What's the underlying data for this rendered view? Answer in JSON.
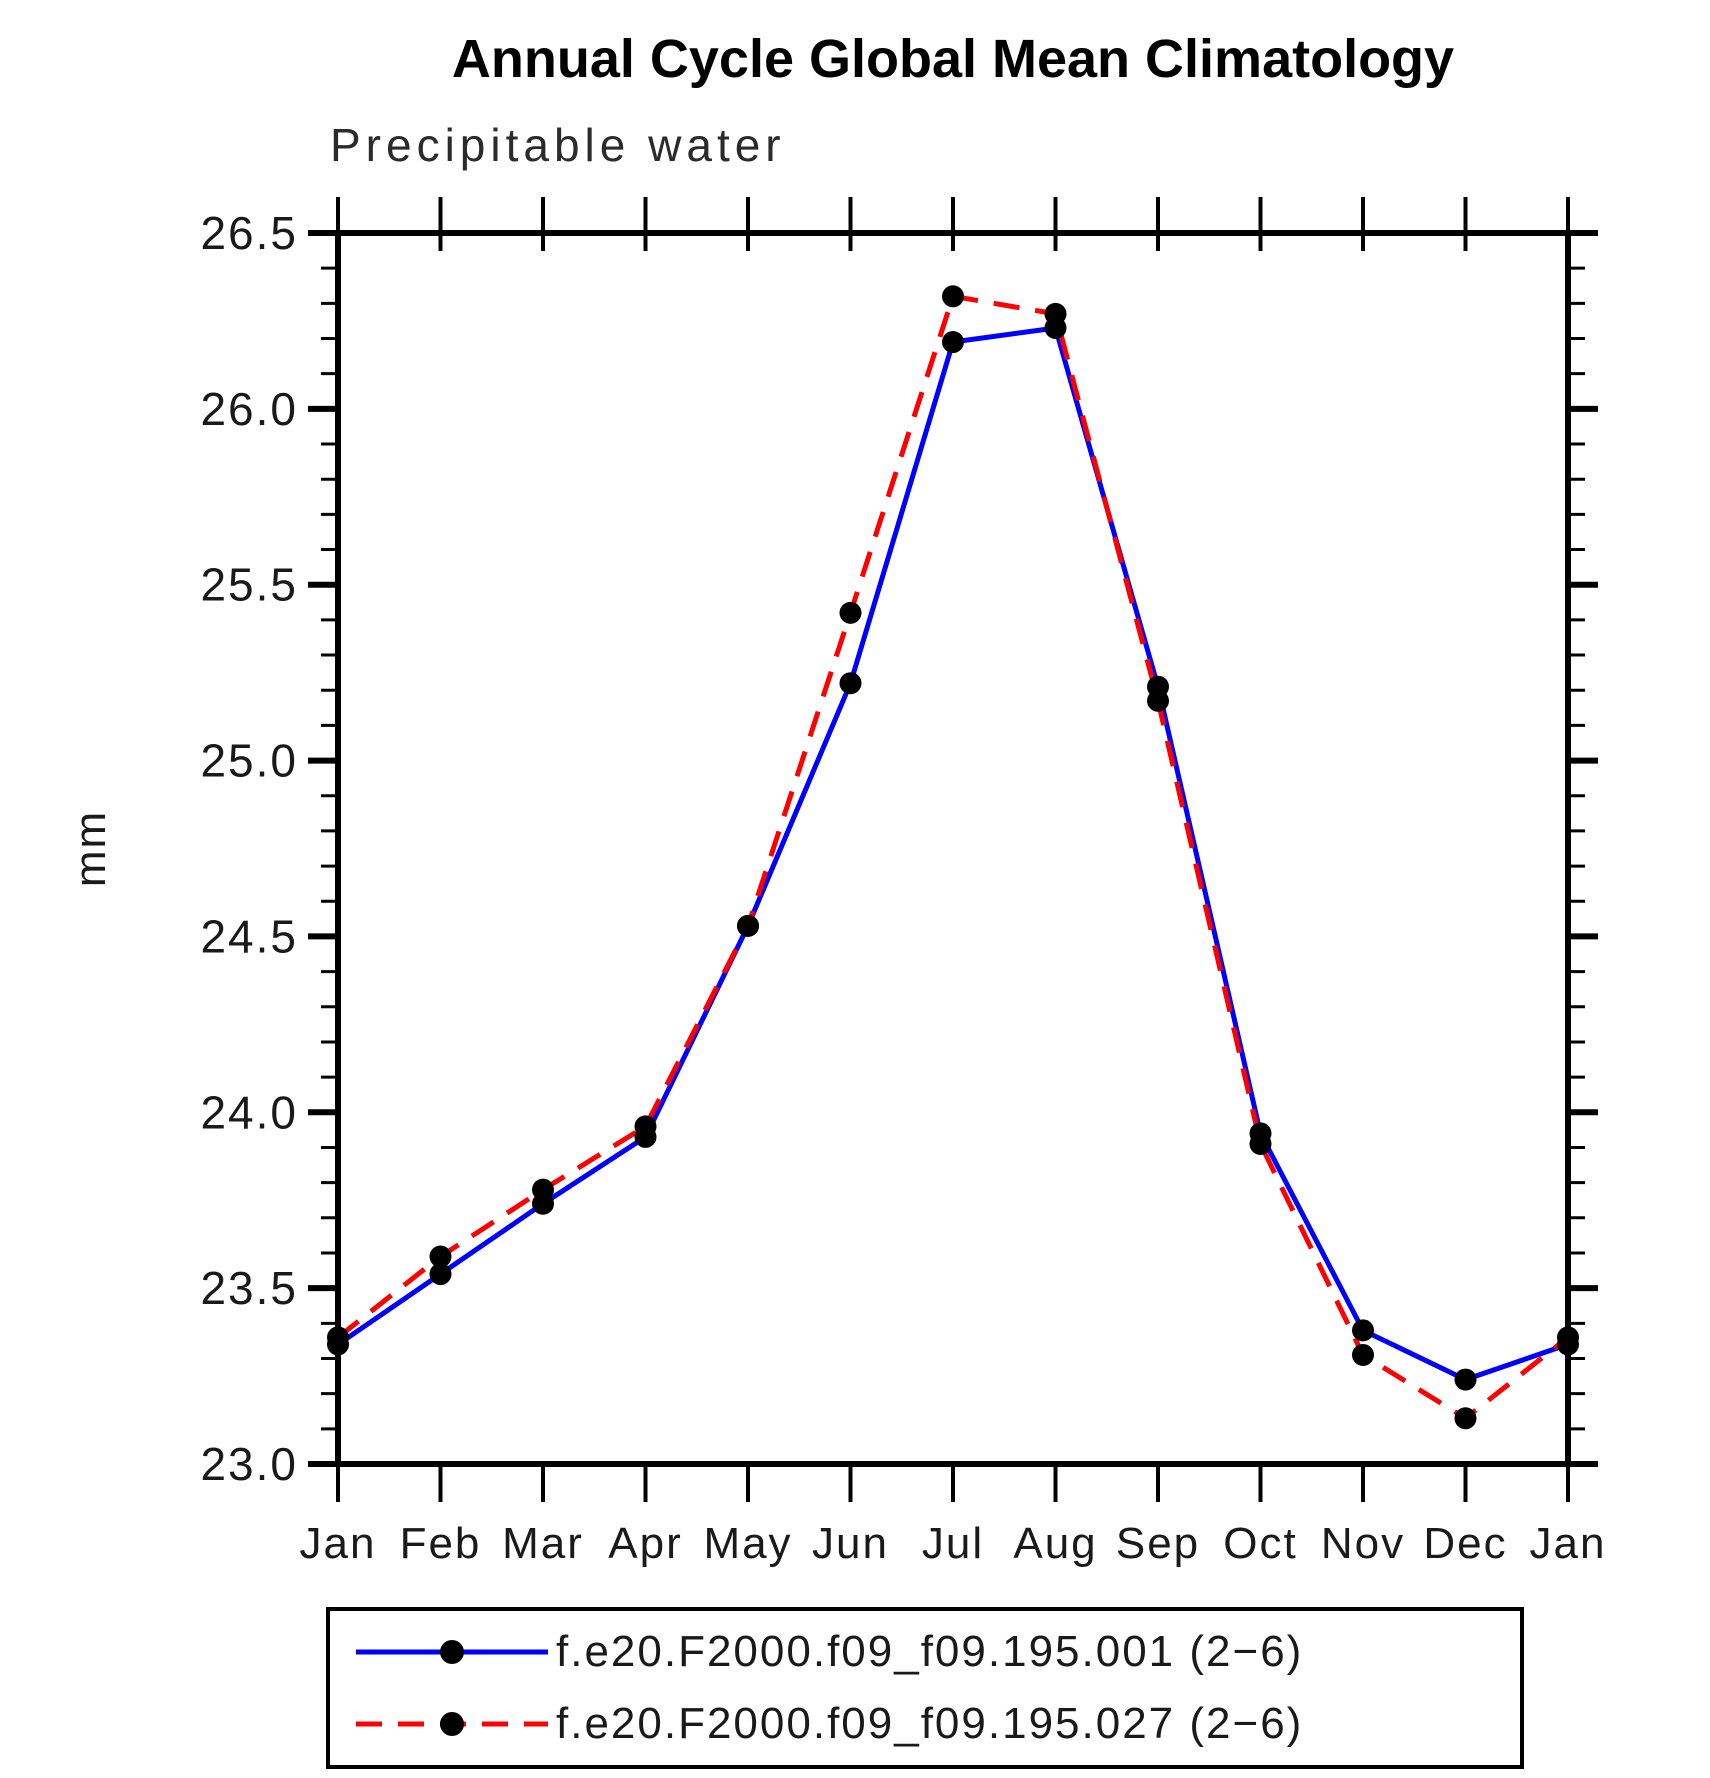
{
  "chart": {
    "title": "Annual Cycle Global Mean Climatology",
    "subtitle": "Precipitable water",
    "y_axis_label": "mm"
  },
  "legend": {
    "items": [
      {
        "label": "f.e20.F2000.f09_f09.195.001 (2−6)",
        "color": "#0000ff",
        "style": "solid"
      },
      {
        "label": "f.e20.F2000.f09_f09.195.027 (2−6)",
        "color": "#ff0000",
        "style": "dashed"
      }
    ]
  },
  "chart_data": {
    "type": "line",
    "title": "Annual Cycle Global Mean Climatology",
    "subtitle": "Precipitable water",
    "xlabel": "",
    "ylabel": "mm",
    "x_labels": [
      "Jan",
      "Feb",
      "Mar",
      "Apr",
      "May",
      "Jun",
      "Jul",
      "Aug",
      "Sep",
      "Oct",
      "Nov",
      "Dec",
      "Jan"
    ],
    "ylim": [
      23.0,
      26.5
    ],
    "y_major_step": 0.5,
    "y_minor_step": 0.1,
    "y_tick_labels": [
      "23.0",
      "23.5",
      "24.0",
      "24.5",
      "25.0",
      "25.5",
      "26.0",
      "26.5"
    ],
    "grid": false,
    "legend_position": "bottom",
    "marker": {
      "shape": "circle",
      "color": "#000000",
      "radius": 11
    },
    "series": [
      {
        "name": "f.e20.F2000.f09_f09.195.001 (2−6)",
        "color": "#0000ff",
        "line_style": "solid",
        "values": [
          23.34,
          23.54,
          23.74,
          23.93,
          24.53,
          25.22,
          26.19,
          26.23,
          25.21,
          23.94,
          23.38,
          23.24,
          23.34
        ]
      },
      {
        "name": "f.e20.F2000.f09_f09.195.027 (2−6)",
        "color": "#ff0000",
        "line_style": "dashed",
        "values": [
          23.36,
          23.59,
          23.78,
          23.96,
          24.53,
          25.42,
          26.32,
          26.27,
          25.17,
          23.91,
          23.31,
          23.13,
          23.36
        ]
      }
    ]
  }
}
